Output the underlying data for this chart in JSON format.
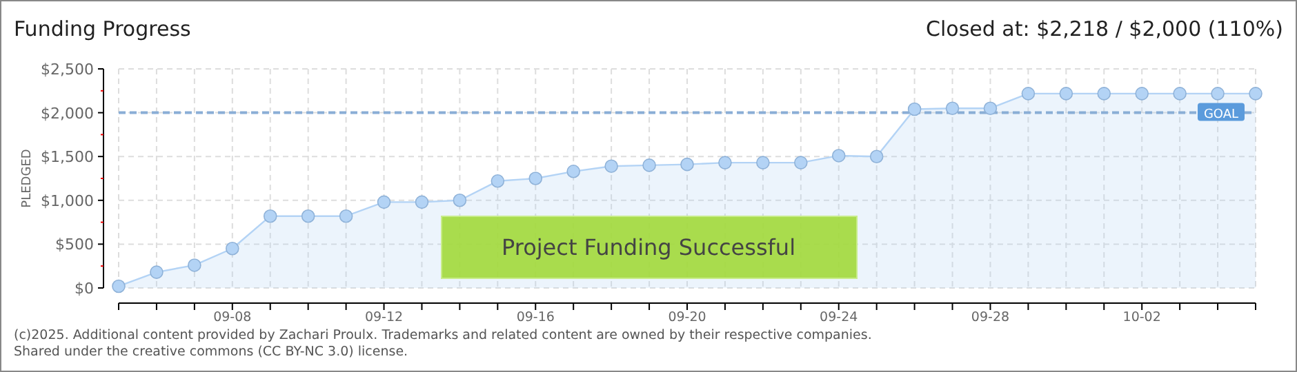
{
  "chart_data": {
    "type": "area",
    "title": "Funding Progress",
    "subtitle": "Closed at: $2,218 / $2,000 (110%)",
    "ylabel": "PLEDGED",
    "x": [
      "--09-05",
      "--09-06",
      "--09-07",
      "--09-08",
      "--09-09",
      "--09-10",
      "--09-11",
      "--09-12",
      "--09-13",
      "--09-14",
      "--09-15",
      "--09-16",
      "--09-17",
      "--09-18",
      "--09-19",
      "--09-20",
      "--09-21",
      "--09-22",
      "--09-23",
      "--09-24",
      "--09-25",
      "--09-26",
      "--09-27",
      "--09-28",
      "--09-29",
      "--09-30",
      "--10-01",
      "--10-02",
      "--10-03",
      "--10-04",
      "--10-05"
    ],
    "series": [
      {
        "color": "#b3d3f5",
        "values": [
          20,
          180,
          260,
          450,
          820,
          820,
          820,
          980,
          980,
          1000,
          1220,
          1250,
          1330,
          1390,
          1400,
          1410,
          1430,
          1430,
          1430,
          1510,
          1500,
          2040,
          2050,
          2050,
          2218,
          2218,
          2218,
          2218,
          2218,
          2218,
          2218
        ]
      }
    ],
    "xlim": [
      "--09-05",
      "--10-05"
    ],
    "xticks": [
      {
        "value": "--09-05",
        "label": null
      },
      {
        "value": "--09-06",
        "label": null
      },
      {
        "value": "--09-07",
        "label": null
      },
      {
        "value": "--09-08",
        "label": "09-08"
      },
      {
        "value": "--09-09",
        "label": null
      },
      {
        "value": "--09-10",
        "label": null
      },
      {
        "value": "--09-11",
        "label": null
      },
      {
        "value": "--09-12",
        "label": "09-12"
      },
      {
        "value": "--09-13",
        "label": null
      },
      {
        "value": "--09-14",
        "label": null
      },
      {
        "value": "--09-15",
        "label": null
      },
      {
        "value": "--09-16",
        "label": "09-16"
      },
      {
        "value": "--09-17",
        "label": null
      },
      {
        "value": "--09-18",
        "label": null
      },
      {
        "value": "--09-19",
        "label": null
      },
      {
        "value": "--09-20",
        "label": "09-20"
      },
      {
        "value": "--09-21",
        "label": null
      },
      {
        "value": "--09-22",
        "label": null
      },
      {
        "value": "--09-23",
        "label": null
      },
      {
        "value": "--09-24",
        "label": "09-24"
      },
      {
        "value": "--09-25",
        "label": null
      },
      {
        "value": "--09-26",
        "label": null
      },
      {
        "value": "--09-27",
        "label": null
      },
      {
        "value": "--09-28",
        "label": "09-28"
      },
      {
        "value": "--09-29",
        "label": null
      },
      {
        "value": "--09-30",
        "label": null
      },
      {
        "value": "--10-01",
        "label": null
      },
      {
        "value": "--10-02",
        "label": "10-02"
      },
      {
        "value": "--10-03",
        "label": null
      },
      {
        "value": "--10-04",
        "label": null
      },
      {
        "value": "--10-05",
        "label": null
      }
    ],
    "ylim": [
      0,
      2500
    ],
    "yticks": [
      {
        "value": 0,
        "label": "$0"
      },
      {
        "value": 250,
        "label": null
      },
      {
        "value": 500,
        "label": "$500"
      },
      {
        "value": 750,
        "label": null
      },
      {
        "value": 1000,
        "label": "$1,000"
      },
      {
        "value": 1250,
        "label": null
      },
      {
        "value": 1500,
        "label": "$1,500"
      },
      {
        "value": 1750,
        "label": null
      },
      {
        "value": 2000,
        "label": "$2,000"
      },
      {
        "value": 2250,
        "label": null
      },
      {
        "value": 2500,
        "label": "$2,500"
      }
    ],
    "ref_lines": [
      {
        "axis": "y",
        "value": 2000,
        "label": "GOAL",
        "color": "#8aaed6",
        "line_style": "dashed"
      }
    ],
    "annotations": [
      "Project Funding Successful",
      "(c)2025. Additional content provided by Zachari Proulx. Trademarks and related content are owned by their respective companies.",
      "Shared under the creative commons (CC BY-NC 3.0) license."
    ],
    "grid": true,
    "marker": "circle",
    "line_style": "solid"
  }
}
